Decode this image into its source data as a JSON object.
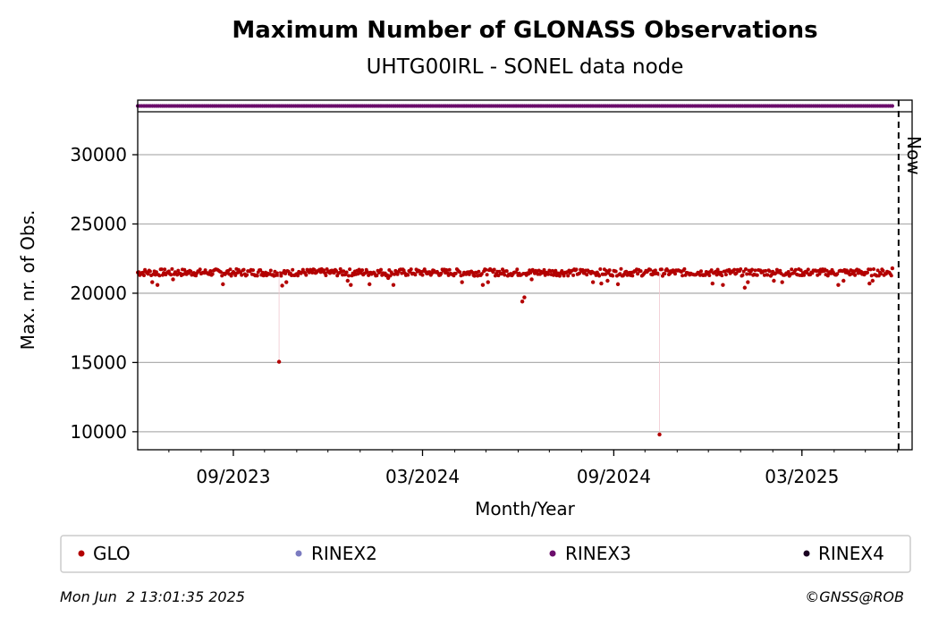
{
  "chart_data": {
    "type": "scatter",
    "title": "Maximum Number of GLONASS Observations",
    "subtitle": "UHTG00IRL - SONEL data node",
    "xlabel": "Month/Year",
    "ylabel": "Max. nr. of Obs.",
    "xlim": [
      "2023-06-01",
      "2025-06-15"
    ],
    "ylim": [
      8700,
      33100
    ],
    "x_ticks": [
      "2023-09-01",
      "2024-03-01",
      "2024-09-01",
      "2025-03-01"
    ],
    "x_tick_labels": [
      "09/2023",
      "03/2024",
      "09/2024",
      "03/2025"
    ],
    "y_ticks": [
      10000,
      15000,
      20000,
      25000,
      30000
    ],
    "y_tick_labels": [
      "10000",
      "15000",
      "20000",
      "25000",
      "30000"
    ],
    "grid": "horizontal",
    "now_marker": {
      "date": "2025-06-02",
      "label": "Now"
    },
    "colors": {
      "GLO": "#b30000",
      "RINEX2": "#7b7bc0",
      "RINEX3": "#6b0d6b",
      "RINEX4": "#1a0022",
      "grid": "#b0b0b0"
    },
    "legend": {
      "placement": "bottom",
      "entries": [
        "GLO",
        "RINEX2",
        "RINEX3",
        "RINEX4"
      ]
    },
    "rinex_strip": {
      "series": "RINEX3",
      "start": "2023-06-01",
      "end": "2025-05-27"
    },
    "series": [
      {
        "name": "GLO",
        "baseline": 21500,
        "points": [
          [
            "2023-06-15",
            20800
          ],
          [
            "2023-06-20",
            20600
          ],
          [
            "2023-07-05",
            21000
          ],
          [
            "2023-08-10",
            21600
          ],
          [
            "2023-08-22",
            20650
          ],
          [
            "2023-10-15",
            15050
          ],
          [
            "2023-10-18",
            20550
          ],
          [
            "2023-10-22",
            20800
          ],
          [
            "2023-12-20",
            20900
          ],
          [
            "2023-12-23",
            20600
          ],
          [
            "2024-01-10",
            20650
          ],
          [
            "2024-01-28",
            21100
          ],
          [
            "2024-02-02",
            20600
          ],
          [
            "2024-04-08",
            20800
          ],
          [
            "2024-04-28",
            20600
          ],
          [
            "2024-05-03",
            20800
          ],
          [
            "2024-06-05",
            19400
          ],
          [
            "2024-06-07",
            19700
          ],
          [
            "2024-06-14",
            21000
          ],
          [
            "2024-08-12",
            20800
          ],
          [
            "2024-08-20",
            20700
          ],
          [
            "2024-08-26",
            20900
          ],
          [
            "2024-09-02",
            21600
          ],
          [
            "2024-09-05",
            20650
          ],
          [
            "2024-10-15",
            9800
          ],
          [
            "2024-12-05",
            20700
          ],
          [
            "2024-12-15",
            20600
          ],
          [
            "2024-12-27",
            21400
          ],
          [
            "2025-01-05",
            20400
          ],
          [
            "2025-01-08",
            20800
          ],
          [
            "2025-02-02",
            20900
          ],
          [
            "2025-02-10",
            20800
          ],
          [
            "2025-04-05",
            20600
          ],
          [
            "2025-04-10",
            20900
          ],
          [
            "2025-05-05",
            20700
          ],
          [
            "2025-05-08",
            20900
          ],
          [
            "2025-05-27",
            21800
          ]
        ]
      }
    ]
  },
  "footer": {
    "timestamp": "Mon Jun  2 13:01:35 2025",
    "copyright": "©GNSS@ROB"
  }
}
